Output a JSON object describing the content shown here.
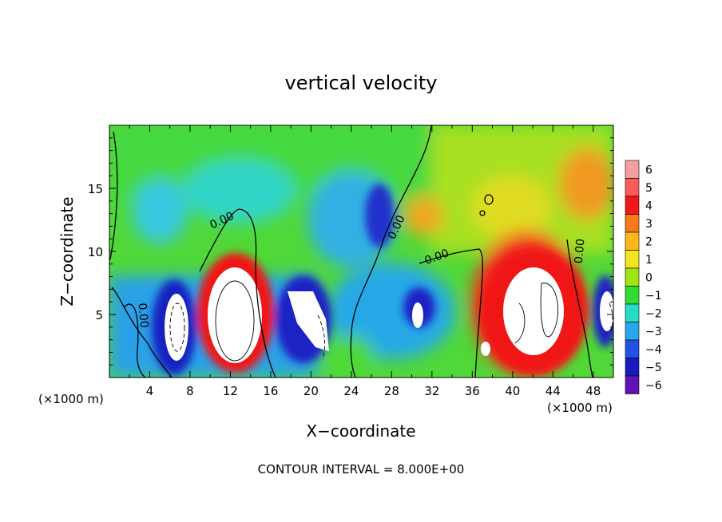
{
  "chart_data": {
    "type": "heatmap",
    "title": "vertical velocity",
    "xlabel": "X−coordinate",
    "ylabel": "Z−coordinate",
    "x_unit_left": "(×1000 m)",
    "x_unit_right": "(×1000 m)",
    "xlim": [
      0,
      50
    ],
    "ylim": [
      0,
      20
    ],
    "x_ticks": [
      4,
      8,
      12,
      16,
      20,
      24,
      28,
      32,
      36,
      40,
      44,
      48
    ],
    "y_ticks": [
      5,
      10,
      15
    ],
    "footer": "CONTOUR INTERVAL = 8.000E+00",
    "contour_labels": [
      {
        "text": "0.00",
        "x": 11.3,
        "y": 12.2,
        "angle": -25
      },
      {
        "text": "0.00",
        "x": 28.8,
        "y": 11.8,
        "angle": -65
      },
      {
        "text": "0.00",
        "x": 32.6,
        "y": 9.3,
        "angle": -20
      },
      {
        "text": "0.00",
        "x": 3.0,
        "y": 4.9,
        "angle": 85
      },
      {
        "text": "0.00",
        "x": 47.0,
        "y": 10.0,
        "angle": -85
      }
    ],
    "colorbar": {
      "levels": [
        "6",
        "5",
        "4",
        "3",
        "2",
        "1",
        "0",
        "−1",
        "−2",
        "−3",
        "−4",
        "−5",
        "−6"
      ],
      "colors": [
        "#f4a0a0",
        "#fb5a5a",
        "#f0181a",
        "#f77a1a",
        "#fbb818",
        "#f2e41c",
        "#a0e414",
        "#30dc30",
        "#28dcc8",
        "#28a8ec",
        "#2450e4",
        "#181cc0",
        "#6014b4"
      ]
    },
    "background": "#50d838"
  }
}
